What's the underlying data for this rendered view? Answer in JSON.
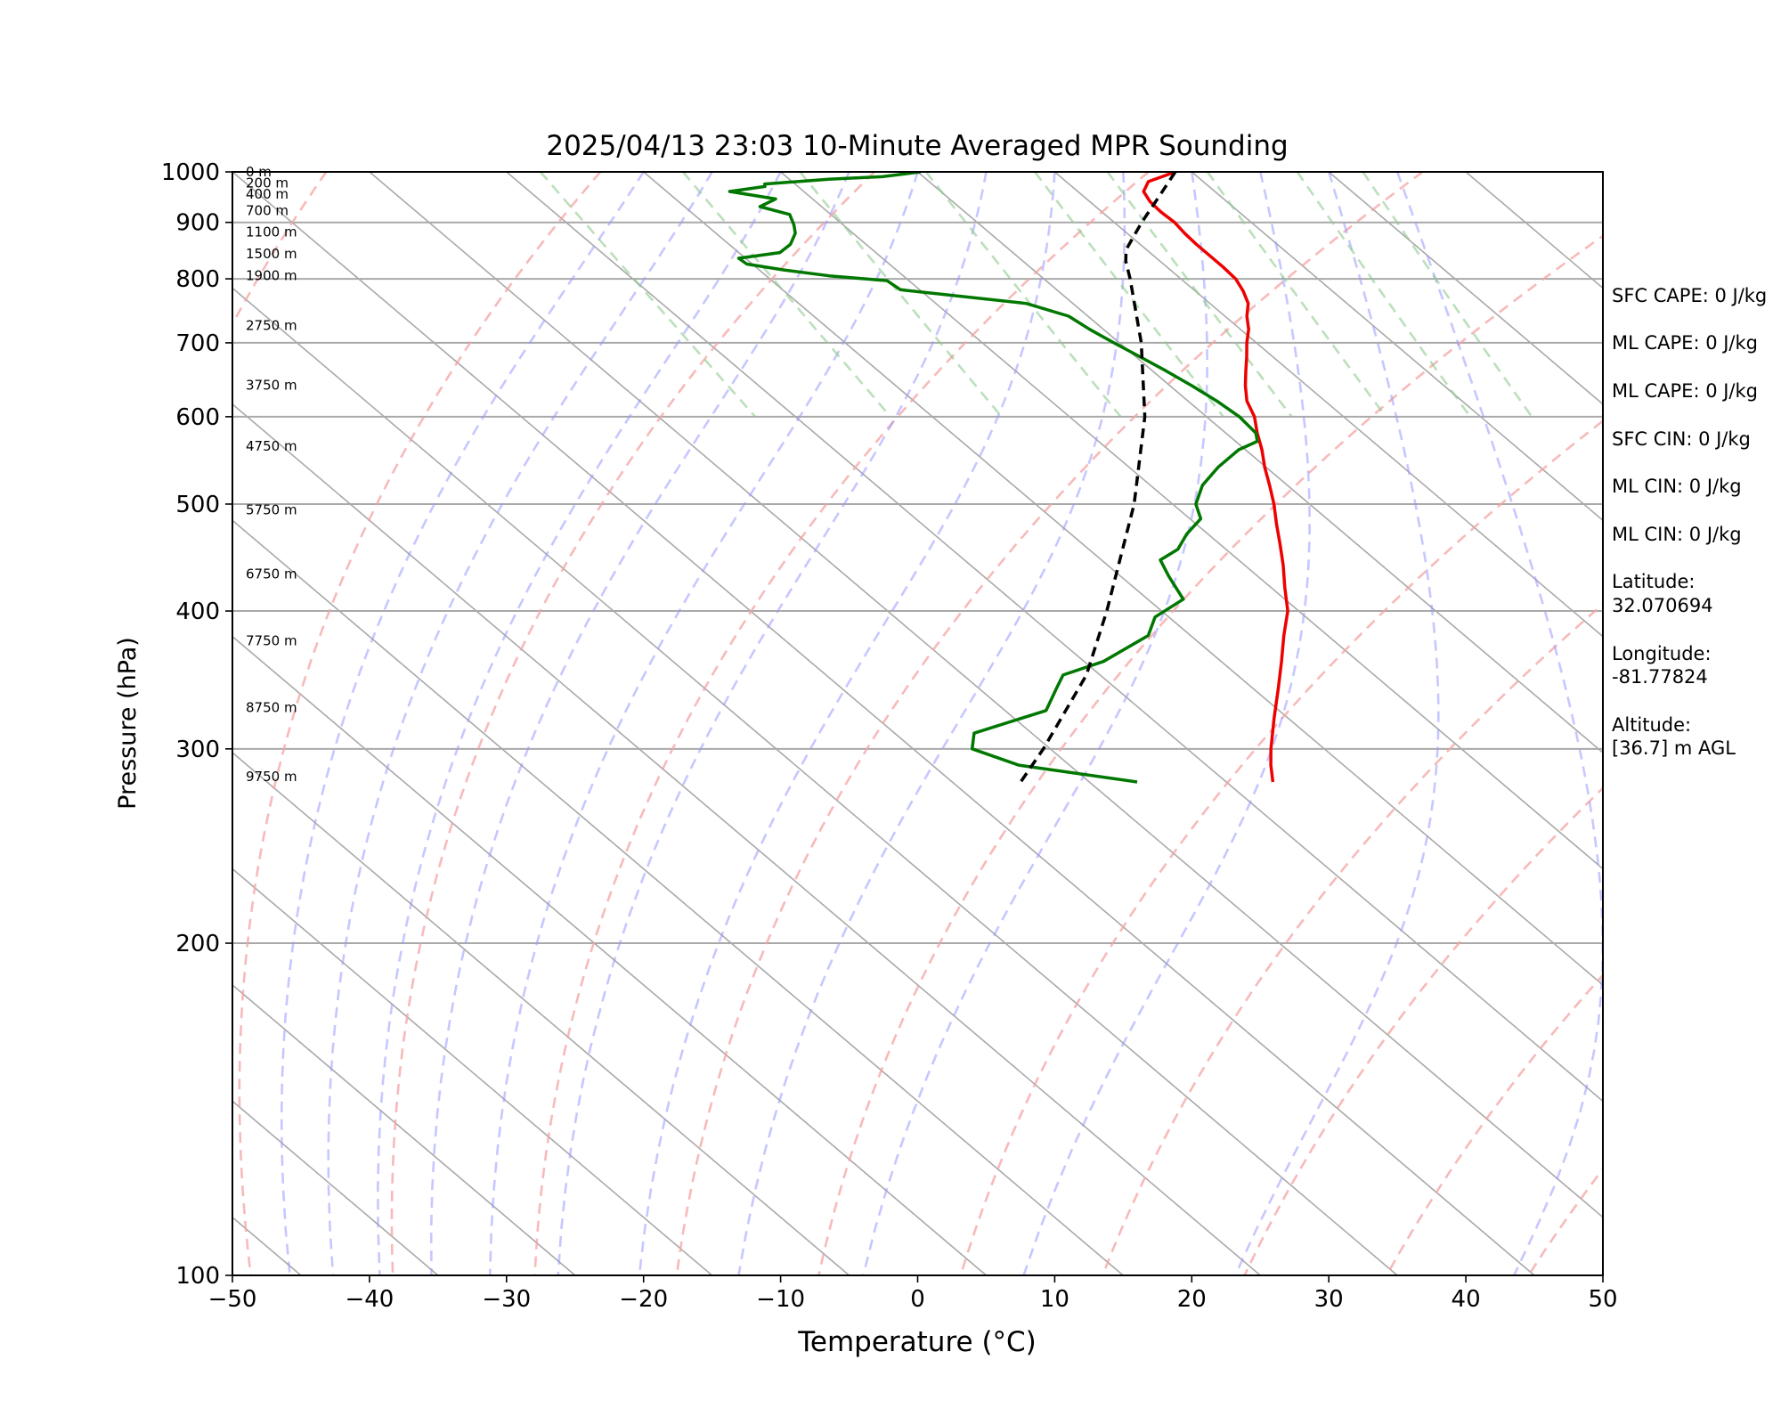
{
  "chart_data": {
    "type": "line",
    "title": "2025/04/13 23:03 10-Minute Averaged MPR Sounding",
    "xlabel": "Temperature (°C)",
    "ylabel": "Pressure (hPa)",
    "xlim": [
      -50,
      50
    ],
    "ylim": [
      1000,
      100
    ],
    "y_scale": "log",
    "x_ticks": [
      -50,
      -40,
      -30,
      -20,
      -10,
      0,
      10,
      20,
      30,
      40,
      50
    ],
    "x_tick_labels": [
      "−50",
      "−40",
      "−30",
      "−20",
      "−10",
      "0",
      "10",
      "20",
      "30",
      "40",
      "50"
    ],
    "y_ticks": [
      1000,
      900,
      800,
      700,
      600,
      500,
      400,
      300,
      200,
      100
    ],
    "y_tick_labels": [
      "1000",
      "900",
      "800",
      "700",
      "600",
      "500",
      "400",
      "300",
      "200",
      "100"
    ],
    "grid": true,
    "skew_per_decade_degC": 95,
    "series": [
      {
        "role": "temperature",
        "color": "#ee0000",
        "points": [
          [
            1000,
            18.8
          ],
          [
            980,
            16
          ],
          [
            960,
            14.8
          ],
          [
            940,
            14.4
          ],
          [
            920,
            14.3
          ],
          [
            900,
            14.4
          ],
          [
            880,
            14.2
          ],
          [
            860,
            14.1
          ],
          [
            840,
            14.1
          ],
          [
            820,
            14.1
          ],
          [
            800,
            14
          ],
          [
            780,
            13.5
          ],
          [
            760,
            12.8
          ],
          [
            740,
            11.6
          ],
          [
            720,
            10.6
          ],
          [
            700,
            9.3
          ],
          [
            680,
            8.1
          ],
          [
            660,
            6.8
          ],
          [
            640,
            5.5
          ],
          [
            620,
            4.3
          ],
          [
            600,
            3.5
          ],
          [
            580,
            2.3
          ],
          [
            560,
            1.2
          ],
          [
            540,
            -0.1
          ],
          [
            520,
            -1.3
          ],
          [
            500,
            -2.6
          ],
          [
            480,
            -4.1
          ],
          [
            460,
            -5.6
          ],
          [
            440,
            -7.2
          ],
          [
            420,
            -9
          ],
          [
            400,
            -10.8
          ],
          [
            380,
            -13.2
          ],
          [
            360,
            -15.6
          ],
          [
            340,
            -18.2
          ],
          [
            320,
            -21
          ],
          [
            300,
            -23.9
          ],
          [
            290,
            -25.3
          ],
          [
            280,
            -26.6
          ]
        ]
      },
      {
        "role": "dewpoint",
        "color": "#007700",
        "points": [
          [
            1000,
            0.2
          ],
          [
            990,
            -3
          ],
          [
            985,
            -7
          ],
          [
            975,
            -12.2
          ],
          [
            970,
            -12.4
          ],
          [
            960,
            -15.4
          ],
          [
            945,
            -12.7
          ],
          [
            930,
            -14.5
          ],
          [
            915,
            -13
          ],
          [
            895,
            -13.6
          ],
          [
            880,
            -14.2
          ],
          [
            860,
            -15.5
          ],
          [
            845,
            -17
          ],
          [
            835,
            -20.5
          ],
          [
            825,
            -20.4
          ],
          [
            815,
            -18.2
          ],
          [
            805,
            -15.4
          ],
          [
            797,
            -11.6
          ],
          [
            782,
            -11.4
          ],
          [
            760,
            -3.4
          ],
          [
            740,
            -1.4
          ],
          [
            720,
            -1
          ],
          [
            700,
            -0.4
          ],
          [
            680,
            0.3
          ],
          [
            660,
            1
          ],
          [
            640,
            1.6
          ],
          [
            620,
            2.1
          ],
          [
            600,
            2.4
          ],
          [
            580,
            2.2
          ],
          [
            570,
            1.6
          ],
          [
            560,
            -0.5
          ],
          [
            540,
            -3.5
          ],
          [
            520,
            -6.2
          ],
          [
            500,
            -8.3
          ],
          [
            485,
            -9.2
          ],
          [
            470,
            -11.5
          ],
          [
            455,
            -13.5
          ],
          [
            445,
            -15.7
          ],
          [
            430,
            -16.5
          ],
          [
            410,
            -17.4
          ],
          [
            395,
            -21
          ],
          [
            380,
            -23.1
          ],
          [
            360,
            -28.6
          ],
          [
            350,
            -32.7
          ],
          [
            340,
            -34.4
          ],
          [
            325,
            -37
          ],
          [
            310,
            -44.2
          ],
          [
            300,
            -45.7
          ],
          [
            290,
            -43.7
          ],
          [
            280,
            -36.5
          ]
        ]
      },
      {
        "role": "parcel",
        "color": "#000000",
        "dashed": true,
        "points": [
          [
            1000,
            18.8
          ],
          [
            950,
            15.5
          ],
          [
            900,
            12
          ],
          [
            850,
            8.5
          ],
          [
            830,
            7.5
          ],
          [
            800,
            6.3
          ],
          [
            700,
            1.6
          ],
          [
            600,
            -4.5
          ],
          [
            500,
            -12.8
          ],
          [
            400,
            -24
          ],
          [
            350,
            -31
          ],
          [
            300,
            -40.5
          ],
          [
            280,
            -45
          ]
        ]
      }
    ],
    "dry_adiabat_potential_temps_K": [
      230,
      250,
      270,
      290,
      310,
      330,
      350,
      370,
      390,
      410,
      430,
      450,
      470,
      490,
      510
    ],
    "moist_adiabat_start_temps_degC": [
      -20,
      -15,
      -10,
      -5,
      0,
      5,
      10,
      15,
      20,
      25,
      30,
      35
    ],
    "mixing_ratio_lines_gkg": [
      0.4,
      1,
      2,
      4,
      7,
      10,
      16,
      24,
      32
    ],
    "height_labels": [
      {
        "text": "0 m",
        "p": 1000
      },
      {
        "text": "200 m",
        "p": 977
      },
      {
        "text": "400 m",
        "p": 955
      },
      {
        "text": "700 m",
        "p": 922
      },
      {
        "text": "1100 m",
        "p": 882
      },
      {
        "text": "1500 m",
        "p": 843
      },
      {
        "text": "1900 m",
        "p": 805
      },
      {
        "text": "2750 m",
        "p": 726
      },
      {
        "text": "3750 m",
        "p": 641
      },
      {
        "text": "4750 m",
        "p": 564
      },
      {
        "text": "5750 m",
        "p": 494
      },
      {
        "text": "6750 m",
        "p": 432
      },
      {
        "text": "7750 m",
        "p": 376
      },
      {
        "text": "8750 m",
        "p": 327
      },
      {
        "text": "9750 m",
        "p": 283
      }
    ]
  },
  "info_panel": {
    "sfc_cape": "SFC CAPE: 0 J/kg",
    "ml_cape_1": "ML CAPE: 0 J/kg",
    "ml_cape_2": "ML CAPE: 0 J/kg",
    "sfc_cin": "SFC CIN: 0 J/kg",
    "ml_cin_1": "ML CIN: 0 J/kg",
    "ml_cin_2": "ML CIN: 0 J/kg",
    "latitude_label": "Latitude:",
    "latitude_value": "32.070694",
    "longitude_label": "Longitude:",
    "longitude_value": "-81.77824",
    "altitude_label": "Altitude:",
    "altitude_value": "[36.7] m AGL"
  }
}
